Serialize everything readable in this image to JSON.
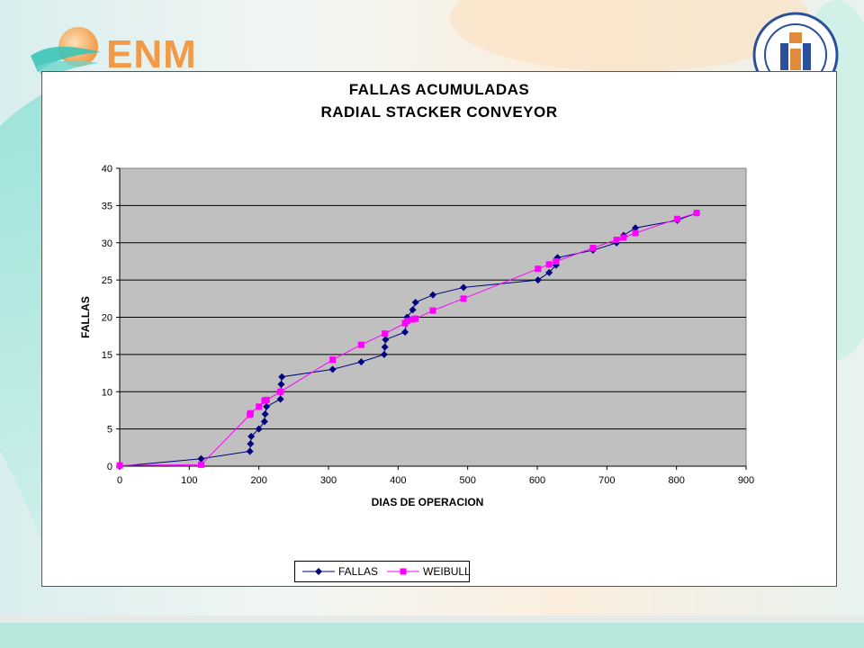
{
  "logo": {
    "text": "ENM"
  },
  "chart_data": {
    "type": "scatter",
    "title_lines": [
      "FALLAS ACUMULADAS",
      "RADIAL  STACKER  CONVEYOR"
    ],
    "xlabel": "DIAS DE OPERACION",
    "ylabel": "FALLAS",
    "xlim": [
      0,
      900
    ],
    "ylim": [
      0,
      40
    ],
    "xticks": [
      0,
      100,
      200,
      300,
      400,
      500,
      600,
      700,
      800,
      900
    ],
    "yticks": [
      0,
      5,
      10,
      15,
      20,
      25,
      30,
      35,
      40
    ],
    "grid": "horizontal",
    "legend_position": "bottom",
    "plot_background": "#c0c0c0",
    "series": [
      {
        "name": "FALLAS",
        "color": "#000080",
        "marker": "diamond",
        "x": [
          0,
          117,
          187,
          188,
          189,
          200,
          208,
          209,
          211,
          231,
          232,
          233,
          306,
          347,
          380,
          381,
          382,
          410,
          413,
          421,
          425,
          450,
          494,
          601,
          617,
          627,
          629,
          680,
          714,
          724,
          741,
          801,
          829
        ],
        "y": [
          0,
          1,
          2,
          3,
          4,
          5,
          6,
          7,
          8,
          9,
          11,
          12,
          13,
          14,
          15,
          16,
          17,
          18,
          20,
          21,
          22,
          23,
          24,
          25,
          26,
          27,
          28,
          29,
          30,
          31,
          32,
          33,
          34
        ]
      },
      {
        "name": "WEIBULL",
        "color": "#ff00ff",
        "marker": "square",
        "x": [
          0,
          117,
          187,
          188,
          200,
          208,
          211,
          231,
          306,
          347,
          381,
          410,
          413,
          421,
          425,
          450,
          494,
          601,
          617,
          627,
          680,
          714,
          724,
          741,
          801,
          829
        ],
        "y": [
          0.1,
          0.2,
          6.9,
          7.1,
          8.0,
          8.8,
          8.9,
          10.0,
          14.3,
          16.3,
          17.8,
          19.2,
          19.5,
          19.7,
          19.8,
          20.9,
          22.5,
          26.5,
          27.1,
          27.5,
          29.3,
          30.4,
          30.7,
          31.3,
          33.2,
          34.0
        ]
      }
    ]
  }
}
